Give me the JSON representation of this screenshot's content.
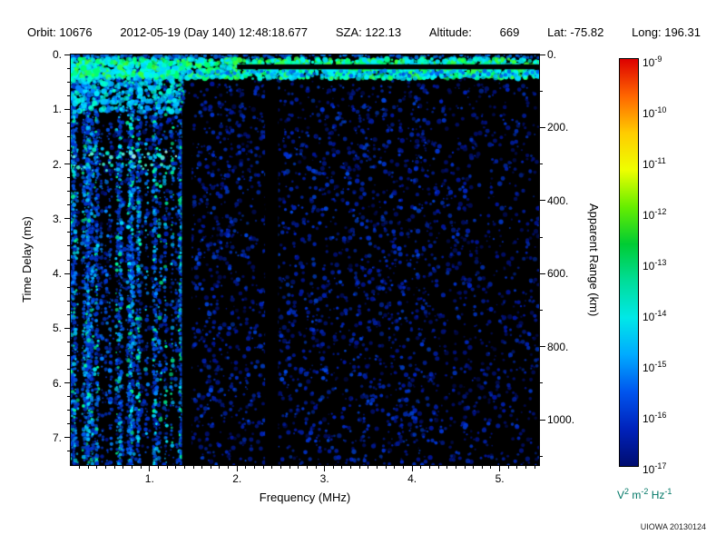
{
  "header": {
    "orbit": "Orbit: 10676",
    "datetime": "2012-05-19 (Day 140) 12:48:18.677",
    "sza": "SZA: 122.13",
    "altitude_label": "Altitude:",
    "altitude_value": "669",
    "lat": "Lat: -75.82",
    "long": "Long: 196.31"
  },
  "credit": "UIOWA 20130124",
  "chart_data": {
    "type": "heatmap",
    "title": "",
    "xlabel": "Frequency (MHz)",
    "ylabel_left": "Time Delay (ms)",
    "ylabel_right": "Apparent Range (km)",
    "x_range_mhz": [
      0.1,
      5.45
    ],
    "y_range_ms": [
      0,
      7.5
    ],
    "right_axis_range_km": [
      0,
      1124
    ],
    "x_ticks": [
      "1.",
      "2.",
      "3.",
      "4.",
      "5."
    ],
    "y_ticks_left": [
      "0.",
      "1.",
      "2.",
      "3.",
      "4.",
      "5.",
      "6.",
      "7."
    ],
    "y_ticks_right": [
      "0.",
      "200.",
      "400.",
      "600.",
      "800.",
      "1000."
    ],
    "background_color": "#000000",
    "colorbar": {
      "scale": "log",
      "tick_exponents": [
        -9,
        -10,
        -11,
        -12,
        -13,
        -14,
        -15,
        -16,
        -17
      ],
      "units_parts": [
        [
          "V",
          "2"
        ],
        [
          " m",
          "-2"
        ],
        [
          " Hz",
          "-1"
        ]
      ],
      "units_color": "#007766",
      "gradient_top_to_bottom": [
        "#dd0000",
        "#ff6600",
        "#ffcc00",
        "#eeff00",
        "#66ee00",
        "#00cc33",
        "#00dd99",
        "#00e8e8",
        "#00aaff",
        "#0055ee",
        "#0022bb",
        "#000d70"
      ]
    },
    "features": [
      {
        "style": "noise",
        "freq_mhz": [
          0.1,
          5.45
        ],
        "time_delay_ms": [
          0.45,
          7.5
        ],
        "density": 0.55,
        "palette": [
          "#000d66",
          "#001499",
          "#0022bb",
          "#0033cc"
        ]
      },
      {
        "style": "noise",
        "freq_mhz": [
          1.45,
          4.3
        ],
        "time_delay_ms": [
          0.55,
          7.5
        ],
        "density": 0.6,
        "palette": [
          "#001a99",
          "#0030cc",
          "#0045dd",
          "#0022aa"
        ]
      },
      {
        "style": "noise",
        "freq_mhz": [
          4.3,
          5.45
        ],
        "time_delay_ms": [
          0.55,
          7.5
        ],
        "density": 0.28,
        "palette": [
          "#001177",
          "#0022aa",
          "#0033bb"
        ]
      },
      {
        "style": "stripes",
        "freq_mhz": [
          0.1,
          1.4
        ],
        "time_delay_ms": [
          0.05,
          7.5
        ],
        "count": 52,
        "palette": [
          "#0033cc",
          "#0055ee",
          "#0088ff",
          "#00bbff",
          "#00eeff",
          "#00ff99"
        ]
      },
      {
        "style": "echo-line",
        "freq_mhz": [
          0.1,
          5.45
        ],
        "time_delay_ms": [
          0.0,
          0.07
        ],
        "palette": [
          "#0044cc",
          "#0060dd",
          "#0077ee"
        ]
      },
      {
        "style": "echo-line",
        "freq_mhz": [
          0.1,
          1.35
        ],
        "time_delay_ms": [
          1.74,
          1.9
        ],
        "palette": [
          "#66ffe0",
          "#00ffd0",
          "#b0ffee",
          "#00ccff"
        ]
      },
      {
        "style": "echo-line",
        "freq_mhz": [
          0.1,
          1.3
        ],
        "time_delay_ms": [
          1.96,
          2.12
        ],
        "palette": [
          "#44ffd8",
          "#00e8c8",
          "#00ccff"
        ]
      },
      {
        "style": "blackout",
        "freq_mhz": [
          2.32,
          2.47
        ],
        "time_delay_ms": [
          0.5,
          7.5
        ]
      },
      {
        "style": "blackout",
        "freq_mhz": [
          1.37,
          1.48
        ],
        "time_delay_ms": [
          0.95,
          7.5
        ]
      },
      {
        "style": "bright-echo",
        "freq_mhz": [
          0.1,
          5.45
        ],
        "time_delay_ms": [
          0.08,
          0.44
        ],
        "density": 3.2,
        "palette": [
          "#00ffd0",
          "#00ff70",
          "#3aff3a",
          "#00d8ff",
          "#00f0ff"
        ]
      },
      {
        "style": "blackout",
        "freq_mhz": [
          2.0,
          5.45
        ],
        "time_delay_ms": [
          0.18,
          0.27
        ]
      },
      {
        "style": "bright-echo",
        "freq_mhz": [
          0.1,
          1.35
        ],
        "time_delay_ms": [
          0.42,
          1.05
        ],
        "density": 2.2,
        "palette": [
          "#00e8ff",
          "#00c0ff",
          "#00ffcc",
          "#0088ff"
        ]
      },
      {
        "style": "echo-line",
        "freq_mhz": [
          1.35,
          5.45
        ],
        "time_delay_ms": [
          0.3,
          0.4
        ],
        "palette": [
          "#0055ee",
          "#0077ff",
          "#00aaff"
        ]
      }
    ]
  }
}
